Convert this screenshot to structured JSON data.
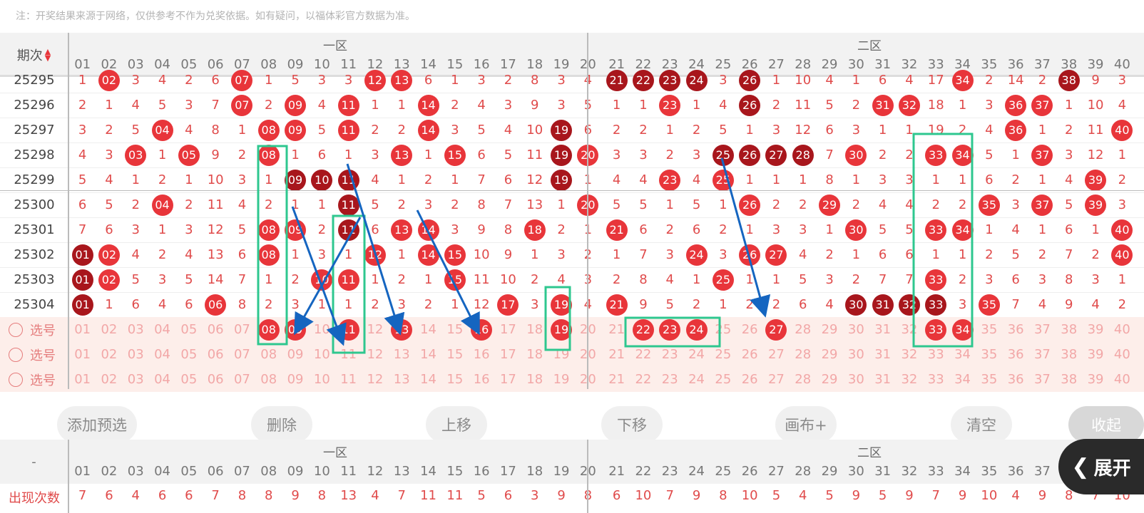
{
  "note": "注：开奖结果来源于网络，仅供参考不作为兑奖依据。如有疑问，以福体彩官方数据为准。",
  "header": {
    "period_label": "期次",
    "zone1": "一区",
    "zone2": "二区"
  },
  "columns": [
    "01",
    "02",
    "03",
    "04",
    "05",
    "06",
    "07",
    "08",
    "09",
    "10",
    "11",
    "12",
    "13",
    "14",
    "15",
    "16",
    "17",
    "18",
    "19",
    "20",
    "21",
    "22",
    "23",
    "24",
    "25",
    "26",
    "27",
    "28",
    "29",
    "30",
    "31",
    "32",
    "33",
    "34",
    "35",
    "36",
    "37",
    "38",
    "39",
    "40"
  ],
  "rows": [
    {
      "period": "25295",
      "cells": [
        "1",
        "02",
        "3",
        "4",
        "2",
        "6",
        "07",
        "1",
        "5",
        "3",
        "3",
        "12",
        "13",
        "6",
        "1",
        "3",
        "2",
        "8",
        "3",
        "4",
        "21",
        "22",
        "23",
        "24",
        "3",
        "26",
        "1",
        "10",
        "4",
        "1",
        "6",
        "4",
        "17",
        "34",
        "2",
        "14",
        "2",
        "38",
        "9",
        "3"
      ],
      "balls": [
        1,
        6,
        11,
        12,
        20,
        21,
        22,
        23,
        25,
        33,
        37
      ],
      "dark": [
        20,
        21,
        22,
        23,
        25,
        37
      ]
    },
    {
      "period": "25296",
      "cells": [
        "2",
        "1",
        "4",
        "5",
        "3",
        "7",
        "07",
        "2",
        "09",
        "4",
        "11",
        "1",
        "1",
        "14",
        "2",
        "4",
        "3",
        "9",
        "3",
        "5",
        "1",
        "1",
        "23",
        "1",
        "4",
        "26",
        "2",
        "11",
        "5",
        "2",
        "31",
        "32",
        "18",
        "1",
        "3",
        "36",
        "37",
        "1",
        "10",
        "4"
      ],
      "balls": [
        6,
        8,
        10,
        13,
        22,
        25,
        30,
        31,
        35,
        36
      ],
      "dark": [
        25
      ]
    },
    {
      "period": "25297",
      "cells": [
        "3",
        "2",
        "5",
        "04",
        "4",
        "8",
        "1",
        "08",
        "09",
        "5",
        "11",
        "2",
        "2",
        "14",
        "3",
        "5",
        "4",
        "10",
        "19",
        "6",
        "2",
        "2",
        "1",
        "2",
        "5",
        "1",
        "3",
        "12",
        "6",
        "3",
        "1",
        "1",
        "19",
        "2",
        "4",
        "36",
        "1",
        "2",
        "11",
        "40"
      ],
      "balls": [
        3,
        7,
        8,
        10,
        13,
        18,
        35,
        39
      ],
      "dark": [
        18
      ]
    },
    {
      "period": "25298",
      "cells": [
        "4",
        "3",
        "03",
        "1",
        "05",
        "9",
        "2",
        "08",
        "1",
        "6",
        "1",
        "3",
        "13",
        "1",
        "15",
        "6",
        "5",
        "11",
        "19",
        "20",
        "3",
        "3",
        "2",
        "3",
        "25",
        "26",
        "27",
        "28",
        "7",
        "30",
        "2",
        "2",
        "33",
        "34",
        "5",
        "1",
        "37",
        "3",
        "12",
        "1"
      ],
      "balls": [
        2,
        4,
        7,
        12,
        14,
        18,
        19,
        24,
        25,
        26,
        27,
        29,
        32,
        33,
        36
      ],
      "dark": [
        18,
        24,
        25,
        26,
        27
      ]
    },
    {
      "period": "25299",
      "cells": [
        "5",
        "4",
        "1",
        "2",
        "1",
        "10",
        "3",
        "1",
        "09",
        "10",
        "11",
        "4",
        "1",
        "2",
        "1",
        "7",
        "6",
        "12",
        "19",
        "1",
        "4",
        "4",
        "23",
        "4",
        "25",
        "1",
        "1",
        "1",
        "8",
        "1",
        "3",
        "3",
        "1",
        "1",
        "6",
        "2",
        "1",
        "4",
        "39",
        "2"
      ],
      "balls": [
        8,
        9,
        10,
        18,
        22,
        24,
        38
      ],
      "dark": [
        8,
        9,
        10,
        18
      ]
    },
    {
      "period": "25300",
      "cells": [
        "6",
        "5",
        "2",
        "04",
        "2",
        "11",
        "4",
        "2",
        "1",
        "1",
        "11",
        "5",
        "2",
        "3",
        "2",
        "8",
        "7",
        "13",
        "1",
        "20",
        "5",
        "5",
        "1",
        "5",
        "1",
        "26",
        "2",
        "2",
        "29",
        "2",
        "4",
        "4",
        "2",
        "2",
        "35",
        "3",
        "37",
        "5",
        "39",
        "3"
      ],
      "balls": [
        3,
        10,
        19,
        25,
        28,
        34,
        36,
        38
      ],
      "dark": [
        10
      ]
    },
    {
      "period": "25301",
      "cells": [
        "7",
        "6",
        "3",
        "1",
        "3",
        "12",
        "5",
        "08",
        "09",
        "2",
        "11",
        "6",
        "13",
        "14",
        "3",
        "9",
        "8",
        "18",
        "2",
        "1",
        "21",
        "6",
        "2",
        "6",
        "2",
        "1",
        "3",
        "3",
        "1",
        "30",
        "5",
        "5",
        "33",
        "34",
        "1",
        "4",
        "1",
        "6",
        "1",
        "40"
      ],
      "balls": [
        7,
        8,
        10,
        12,
        13,
        17,
        20,
        29,
        32,
        33,
        39
      ],
      "dark": [
        10
      ]
    },
    {
      "period": "25302",
      "cells": [
        "01",
        "02",
        "4",
        "2",
        "4",
        "13",
        "6",
        "08",
        "1",
        "3",
        "1",
        "12",
        "1",
        "14",
        "15",
        "10",
        "9",
        "1",
        "3",
        "2",
        "1",
        "7",
        "3",
        "24",
        "3",
        "26",
        "27",
        "4",
        "2",
        "1",
        "6",
        "6",
        "1",
        "1",
        "2",
        "5",
        "2",
        "7",
        "2",
        "40"
      ],
      "balls": [
        0,
        1,
        7,
        11,
        13,
        14,
        23,
        25,
        26,
        39
      ],
      "dark": [
        0
      ]
    },
    {
      "period": "25303",
      "cells": [
        "01",
        "02",
        "5",
        "3",
        "5",
        "14",
        "7",
        "1",
        "2",
        "10",
        "11",
        "1",
        "2",
        "1",
        "15",
        "11",
        "10",
        "2",
        "4",
        "3",
        "2",
        "8",
        "4",
        "1",
        "25",
        "1",
        "1",
        "5",
        "3",
        "2",
        "7",
        "7",
        "33",
        "2",
        "3",
        "6",
        "3",
        "8",
        "3",
        "1"
      ],
      "balls": [
        0,
        1,
        9,
        10,
        14,
        24,
        32
      ],
      "dark": [
        0
      ]
    },
    {
      "period": "25304",
      "cells": [
        "01",
        "1",
        "6",
        "4",
        "6",
        "06",
        "8",
        "2",
        "3",
        "1",
        "1",
        "2",
        "3",
        "2",
        "1",
        "12",
        "17",
        "3",
        "19",
        "4",
        "21",
        "9",
        "5",
        "2",
        "1",
        "2",
        "2",
        "6",
        "4",
        "30",
        "31",
        "32",
        "33",
        "3",
        "35",
        "7",
        "4",
        "9",
        "4",
        "2"
      ],
      "balls": [
        0,
        5,
        16,
        18,
        20,
        29,
        30,
        31,
        32,
        34
      ],
      "dark": [
        0,
        29,
        30,
        31,
        32
      ]
    }
  ],
  "select_rows": [
    {
      "label": "选号",
      "picked": [
        7,
        8,
        10,
        12,
        15,
        18,
        21,
        22,
        23,
        26,
        32,
        33
      ]
    },
    {
      "label": "选号",
      "picked": []
    },
    {
      "label": "选号",
      "picked": []
    }
  ],
  "buttons": [
    "添加预选",
    "删除",
    "上移",
    "下移",
    "画布+",
    "清空",
    "收起"
  ],
  "expand_label": "展开",
  "stats": {
    "row_label": "-",
    "count_label": "出现次数",
    "counts": [
      "7",
      "6",
      "4",
      "6",
      "6",
      "7",
      "8",
      "8",
      "9",
      "8",
      "13",
      "4",
      "7",
      "11",
      "11",
      "5",
      "6",
      "3",
      "9",
      "8",
      "6",
      "10",
      "7",
      "9",
      "8",
      "10",
      "5",
      "4",
      "5",
      "9",
      "5",
      "9",
      "7",
      "9",
      "10",
      "4",
      "9",
      "8",
      "7",
      "10"
    ]
  },
  "colors": {
    "ball": "#e8353a",
    "ball_dark": "#a8161c",
    "select_bg": "#fdeeea",
    "box": "#2ec78f",
    "arrow": "#1565c0",
    "text_red": "#e04b4b"
  }
}
